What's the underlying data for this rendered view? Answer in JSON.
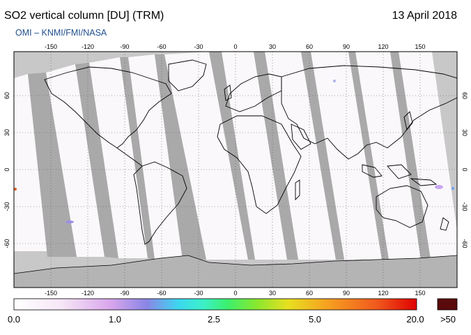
{
  "header": {
    "title": "SO2 vertical column [DU] (TRM)",
    "date": "13 April 2018",
    "credit": "OMI  –  KNMI/FMI/NASA"
  },
  "map": {
    "projection": "equirectangular",
    "lon_ticks": [
      "-150",
      "-120",
      "-90",
      "-60",
      "-30",
      "0",
      "30",
      "60",
      "90",
      "120",
      "150"
    ],
    "lat_ticks": [
      "60",
      "30",
      "0",
      "-30",
      "-60"
    ],
    "colors": {
      "no_data": "#c8c8c8",
      "swath_gap": "#a9a9a9",
      "low_value": "#fbf8fc",
      "coast": "#000000"
    }
  },
  "colorbar": {
    "labels": [
      "0.0",
      "1.0",
      "2.5",
      "5.0",
      "20.0"
    ],
    "overflow_label": ">50",
    "overflow_color": "#5a0a0a"
  }
}
